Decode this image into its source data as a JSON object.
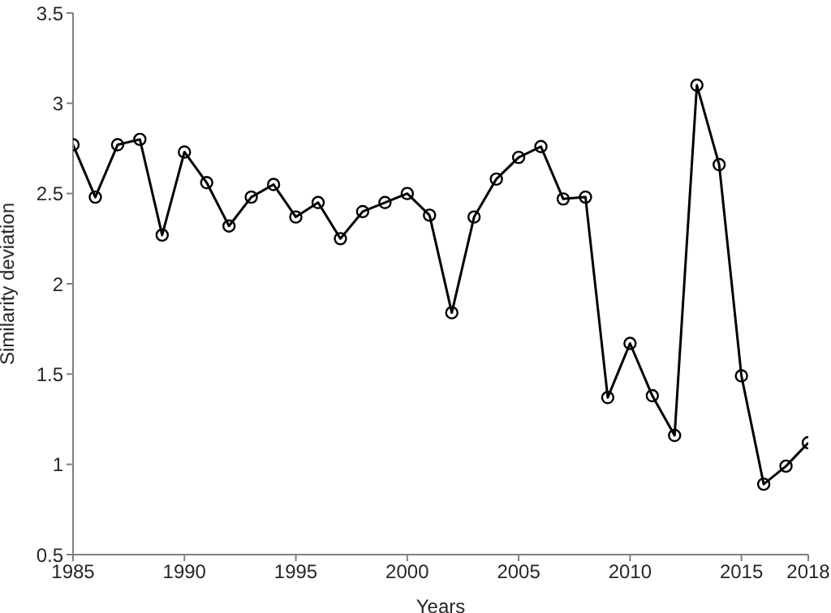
{
  "chart_data": {
    "type": "line",
    "xlabel": "Years",
    "ylabel": "Similarity deviation",
    "x": [
      1985,
      1986,
      1987,
      1988,
      1989,
      1990,
      1991,
      1992,
      1993,
      1994,
      1995,
      1996,
      1997,
      1998,
      1999,
      2000,
      2001,
      2002,
      2003,
      2004,
      2005,
      2006,
      2007,
      2008,
      2009,
      2010,
      2011,
      2012,
      2013,
      2014,
      2015,
      2016,
      2017,
      2018
    ],
    "series": [
      {
        "color": "#000000",
        "values": [
          2.77,
          2.48,
          2.77,
          2.8,
          2.27,
          2.73,
          2.56,
          2.32,
          2.48,
          2.55,
          2.37,
          2.45,
          2.25,
          2.4,
          2.45,
          2.5,
          2.38,
          1.84,
          2.37,
          2.58,
          2.7,
          2.76,
          2.47,
          2.48,
          1.37,
          1.67,
          1.38,
          1.16,
          3.1,
          2.66,
          1.49,
          0.89,
          0.99,
          1.12
        ]
      }
    ],
    "xlim": [
      1985,
      2018
    ],
    "xticks": [
      1985,
      1990,
      1995,
      2000,
      2005,
      2010,
      2015,
      2018
    ],
    "ylim": [
      0.5,
      3.5
    ],
    "yticks": [
      0.5,
      1,
      1.5,
      2,
      2.5,
      3,
      3.5
    ],
    "grid": false,
    "legend": false,
    "marker": "circle",
    "line_style": "solid"
  }
}
